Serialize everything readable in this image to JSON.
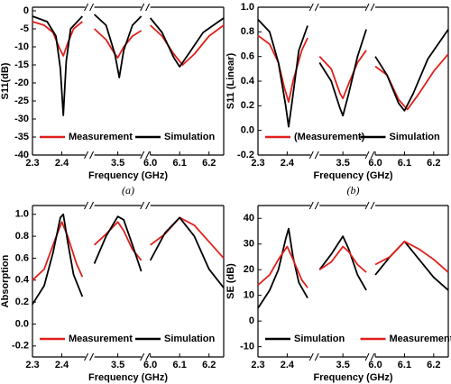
{
  "chart_data": [
    {
      "type": "line",
      "ylabel": "S11(dB)",
      "xlabel": "Frequency (GHz)",
      "caption": "(a)",
      "ylim": [
        -40,
        1
      ],
      "yticks": [
        -40,
        -35,
        -30,
        -25,
        -20,
        -15,
        -10,
        -5,
        0
      ],
      "x_segments": [
        {
          "xlim": [
            2.3,
            2.48
          ],
          "xticks": [
            2.3,
            2.4
          ]
        },
        {
          "xlim": [
            3.42,
            3.58
          ],
          "xticks": [
            3.5
          ]
        },
        {
          "xlim": [
            6.0,
            6.25
          ],
          "xticks": [
            {
              "value": 6,
              "label": "6.0"
            },
            6.1,
            6.2
          ]
        }
      ],
      "legend": "lower center",
      "series": [
        {
          "name": "Measurement",
          "color": "#e0201b",
          "x": [
            2.3,
            2.34,
            2.37,
            2.39,
            2.405,
            2.42,
            2.44,
            2.47,
            null,
            3.42,
            3.46,
            3.49,
            3.5,
            3.52,
            3.55,
            3.58,
            null,
            6.0,
            6.04,
            6.08,
            6.11,
            6.15,
            6.2,
            6.25
          ],
          "values": [
            -3,
            -4,
            -6,
            -10,
            -12.5,
            -9,
            -5,
            -3,
            null,
            -5,
            -8,
            -12,
            -13,
            -10,
            -7,
            -5.5,
            null,
            -4,
            -7,
            -12,
            -15,
            -12,
            -7,
            -4
          ]
        },
        {
          "name": "Simulation",
          "color": "#000000",
          "x": [
            2.3,
            2.35,
            2.38,
            2.395,
            2.405,
            2.415,
            2.43,
            2.47,
            null,
            3.42,
            3.46,
            3.49,
            3.505,
            3.52,
            3.55,
            3.58,
            null,
            6.0,
            6.04,
            6.08,
            6.1,
            6.13,
            6.18,
            6.25
          ],
          "values": [
            -1.5,
            -3,
            -7,
            -16,
            -29,
            -14,
            -5,
            -1.5,
            null,
            -1,
            -4,
            -12,
            -18.5,
            -11,
            -4,
            -1.5,
            null,
            -2,
            -6,
            -13,
            -15.5,
            -12,
            -6,
            -2
          ]
        }
      ]
    },
    {
      "type": "line",
      "ylabel": "S11 (Linear)",
      "xlabel": "Frequency (GHz)",
      "caption": "(b)",
      "ylim": [
        -0.2,
        1.0
      ],
      "yticks": [
        -0.2,
        {
          "value": 0,
          "label": "0.0"
        },
        0.2,
        0.4,
        0.6,
        0.8,
        {
          "value": 1,
          "label": "1.0"
        }
      ],
      "x_segments": [
        {
          "xlim": [
            2.3,
            2.48
          ],
          "xticks": [
            2.3,
            2.4
          ]
        },
        {
          "xlim": [
            3.42,
            3.58
          ],
          "xticks": [
            3.5
          ]
        },
        {
          "xlim": [
            6.0,
            6.25
          ],
          "xticks": [
            {
              "value": 6,
              "label": "6.0"
            },
            6.1,
            6.2
          ]
        }
      ],
      "legend": "lower center",
      "series": [
        {
          "name": "(Measurement)",
          "color": "#e0201b",
          "x": [
            2.3,
            2.34,
            2.37,
            2.39,
            2.405,
            2.42,
            2.45,
            2.47,
            null,
            3.42,
            3.46,
            3.49,
            3.5,
            3.52,
            3.55,
            3.58,
            null,
            6.0,
            6.04,
            6.08,
            6.11,
            6.15,
            6.2,
            6.25
          ],
          "values": [
            0.77,
            0.7,
            0.55,
            0.35,
            0.23,
            0.4,
            0.65,
            0.75,
            null,
            0.6,
            0.5,
            0.3,
            0.26,
            0.38,
            0.55,
            0.65,
            null,
            0.52,
            0.45,
            0.25,
            0.17,
            0.3,
            0.48,
            0.62
          ]
        },
        {
          "name": "Simulation",
          "color": "#000000",
          "x": [
            2.3,
            2.34,
            2.37,
            2.395,
            2.405,
            2.415,
            2.44,
            2.47,
            null,
            3.42,
            3.46,
            3.49,
            3.5,
            3.52,
            3.55,
            3.58,
            null,
            6.0,
            6.04,
            6.08,
            6.1,
            6.13,
            6.18,
            6.25
          ],
          "values": [
            0.9,
            0.8,
            0.55,
            0.2,
            0.03,
            0.2,
            0.65,
            0.85,
            null,
            0.55,
            0.4,
            0.18,
            0.12,
            0.3,
            0.6,
            0.82,
            null,
            0.6,
            0.45,
            0.22,
            0.16,
            0.3,
            0.58,
            0.82
          ]
        }
      ]
    },
    {
      "type": "line",
      "ylabel": "Absorption",
      "xlabel": "Frequency (GHz)",
      "caption": "(c)",
      "ylim": [
        -0.3,
        1.08
      ],
      "yticks": [
        -0.2,
        {
          "value": 0,
          "label": "0.0"
        },
        0.2,
        0.4,
        0.6,
        0.8,
        {
          "value": 1,
          "label": "1.0"
        }
      ],
      "x_segments": [
        {
          "xlim": [
            2.3,
            2.48
          ],
          "xticks": [
            2.3,
            2.4
          ]
        },
        {
          "xlim": [
            3.42,
            3.58
          ],
          "xticks": [
            3.5
          ]
        },
        {
          "xlim": [
            6.0,
            6.25
          ],
          "xticks": [
            {
              "value": 6,
              "label": "6.0"
            },
            6.1,
            6.2
          ]
        }
      ],
      "legend": "lower center",
      "series": [
        {
          "name": "Measurement",
          "color": "#e0201b",
          "x": [
            2.3,
            2.34,
            2.37,
            2.4,
            2.42,
            2.45,
            2.47,
            null,
            3.42,
            3.46,
            3.5,
            3.52,
            3.55,
            3.58,
            null,
            6.0,
            6.05,
            6.1,
            6.15,
            6.2,
            6.25
          ],
          "values": [
            0.4,
            0.5,
            0.72,
            0.93,
            0.8,
            0.55,
            0.43,
            null,
            0.72,
            0.82,
            0.93,
            0.85,
            0.68,
            0.58,
            null,
            0.72,
            0.82,
            0.97,
            0.9,
            0.75,
            0.6
          ]
        },
        {
          "name": "Simulation",
          "color": "#000000",
          "x": [
            2.3,
            2.34,
            2.37,
            2.395,
            2.405,
            2.42,
            2.44,
            2.47,
            null,
            3.42,
            3.46,
            3.5,
            3.52,
            3.55,
            3.58,
            null,
            6.0,
            6.05,
            6.1,
            6.15,
            6.2,
            6.25
          ],
          "values": [
            0.18,
            0.35,
            0.65,
            0.97,
            1.0,
            0.75,
            0.45,
            0.25,
            null,
            0.55,
            0.8,
            0.98,
            0.95,
            0.72,
            0.48,
            null,
            0.58,
            0.83,
            0.97,
            0.8,
            0.5,
            0.33
          ]
        }
      ]
    },
    {
      "type": "line",
      "ylabel": "SE (dB)",
      "xlabel": "Frequency (GHz)",
      "caption": "(d)",
      "ylim": [
        -14,
        45
      ],
      "yticks": [
        -10,
        0,
        10,
        20,
        30,
        40
      ],
      "x_segments": [
        {
          "xlim": [
            2.3,
            2.48
          ],
          "xticks": [
            2.3,
            2.4
          ]
        },
        {
          "xlim": [
            3.42,
            3.58
          ],
          "xticks": [
            3.5
          ]
        },
        {
          "xlim": [
            6.0,
            6.25
          ],
          "xticks": [
            {
              "value": 6,
              "label": "6.0"
            },
            6.1,
            6.2
          ]
        }
      ],
      "legend": "lower center",
      "series": [
        {
          "name": "Simulation",
          "color": "#000000",
          "x": [
            2.3,
            2.34,
            2.37,
            2.395,
            2.405,
            2.42,
            2.44,
            2.47,
            null,
            3.42,
            3.46,
            3.5,
            3.52,
            3.55,
            3.58,
            null,
            6.0,
            6.05,
            6.1,
            6.15,
            6.2,
            6.25
          ],
          "values": [
            5,
            12,
            20,
            32,
            36,
            25,
            15,
            9,
            null,
            20,
            26,
            33,
            28,
            18,
            12,
            null,
            18,
            25,
            31,
            24,
            17,
            12
          ]
        },
        {
          "name": "Measurement",
          "color": "#e0201b",
          "x": [
            2.3,
            2.34,
            2.37,
            2.4,
            2.42,
            2.45,
            2.47,
            null,
            3.42,
            3.46,
            3.5,
            3.52,
            3.55,
            3.58,
            null,
            6.0,
            6.05,
            6.1,
            6.15,
            6.2,
            6.25
          ],
          "values": [
            14,
            18,
            24,
            29,
            24,
            16,
            13,
            null,
            20,
            23,
            29,
            27,
            22,
            19,
            null,
            22,
            25,
            31,
            28,
            24,
            19
          ]
        }
      ]
    }
  ]
}
